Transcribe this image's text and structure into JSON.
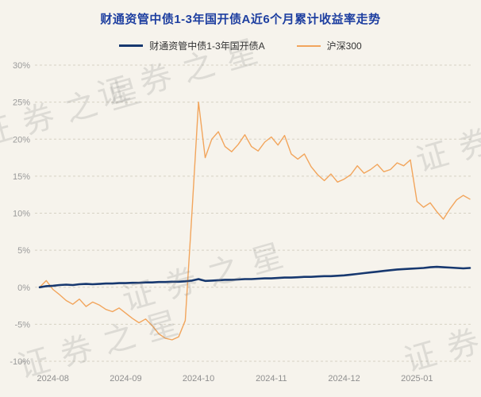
{
  "page": {
    "background": "#f6f3ec",
    "watermark_text": "证券之星"
  },
  "title": "财通资管中债1-3年国开债A近6个月累计收益率走势",
  "legend": [
    {
      "key": "fund",
      "label": "财通资管中债1-3年国开债A",
      "color": "#17386f"
    },
    {
      "key": "csi300",
      "label": "沪深300",
      "color": "#f2a55c"
    }
  ],
  "chart_data": {
    "type": "line",
    "title": "财通资管中债1-3年国开债A近6个月累计收益率走势",
    "xlabel": "",
    "ylabel": "",
    "grid": "dashed-horizontal",
    "legend_position": "top-center",
    "ylim": [
      -10,
      30
    ],
    "y_ticks": [
      30,
      25,
      20,
      15,
      10,
      5,
      0,
      -5,
      -10
    ],
    "y_tick_suffix": "%",
    "x_type": "evenly-spaced-index",
    "x_tick_labels": [
      "2024-08",
      "2024-09",
      "2024-10",
      "2024-11",
      "2024-12",
      "2025-01"
    ],
    "x_tick_positions": [
      2,
      13,
      24,
      35,
      46,
      57
    ],
    "series": [
      {
        "key": "fund",
        "name": "财通资管中债1-3年国开债A",
        "color": "#17386f",
        "width": 2.6,
        "values": [
          0.0,
          0.15,
          0.2,
          0.3,
          0.35,
          0.3,
          0.4,
          0.45,
          0.4,
          0.45,
          0.5,
          0.5,
          0.55,
          0.55,
          0.6,
          0.6,
          0.65,
          0.65,
          0.7,
          0.7,
          0.75,
          0.75,
          0.8,
          0.9,
          1.1,
          0.85,
          0.9,
          0.95,
          1.0,
          1.0,
          1.05,
          1.1,
          1.1,
          1.15,
          1.2,
          1.2,
          1.25,
          1.3,
          1.3,
          1.35,
          1.4,
          1.4,
          1.45,
          1.5,
          1.5,
          1.55,
          1.6,
          1.7,
          1.8,
          1.9,
          2.0,
          2.1,
          2.2,
          2.3,
          2.4,
          2.45,
          2.5,
          2.55,
          2.6,
          2.7,
          2.75,
          2.7,
          2.65,
          2.6,
          2.55,
          2.6
        ]
      },
      {
        "key": "csi300",
        "name": "沪深300",
        "color": "#f2a55c",
        "width": 1.4,
        "values": [
          0.0,
          0.9,
          -0.3,
          -1.0,
          -1.8,
          -2.3,
          -1.6,
          -2.6,
          -2.0,
          -2.4,
          -3.0,
          -3.3,
          -2.8,
          -3.5,
          -4.2,
          -4.8,
          -4.3,
          -5.2,
          -6.3,
          -6.9,
          -7.1,
          -6.7,
          -4.5,
          10.0,
          25.0,
          17.5,
          20.0,
          21.0,
          19.0,
          18.3,
          19.3,
          20.6,
          19.0,
          18.4,
          19.6,
          20.3,
          19.2,
          20.5,
          18.0,
          17.3,
          18.0,
          16.3,
          15.2,
          14.4,
          15.3,
          14.2,
          14.6,
          15.2,
          16.4,
          15.4,
          15.9,
          16.6,
          15.6,
          15.9,
          16.8,
          16.4,
          17.2,
          11.6,
          10.8,
          11.4,
          10.2,
          9.2,
          10.6,
          11.8,
          12.4,
          11.9
        ]
      }
    ]
  },
  "axis_style": {
    "y_label_color": "#9a9a9a",
    "x_label_color": "#8f8f8f",
    "grid_color": "#d6d2c4"
  }
}
